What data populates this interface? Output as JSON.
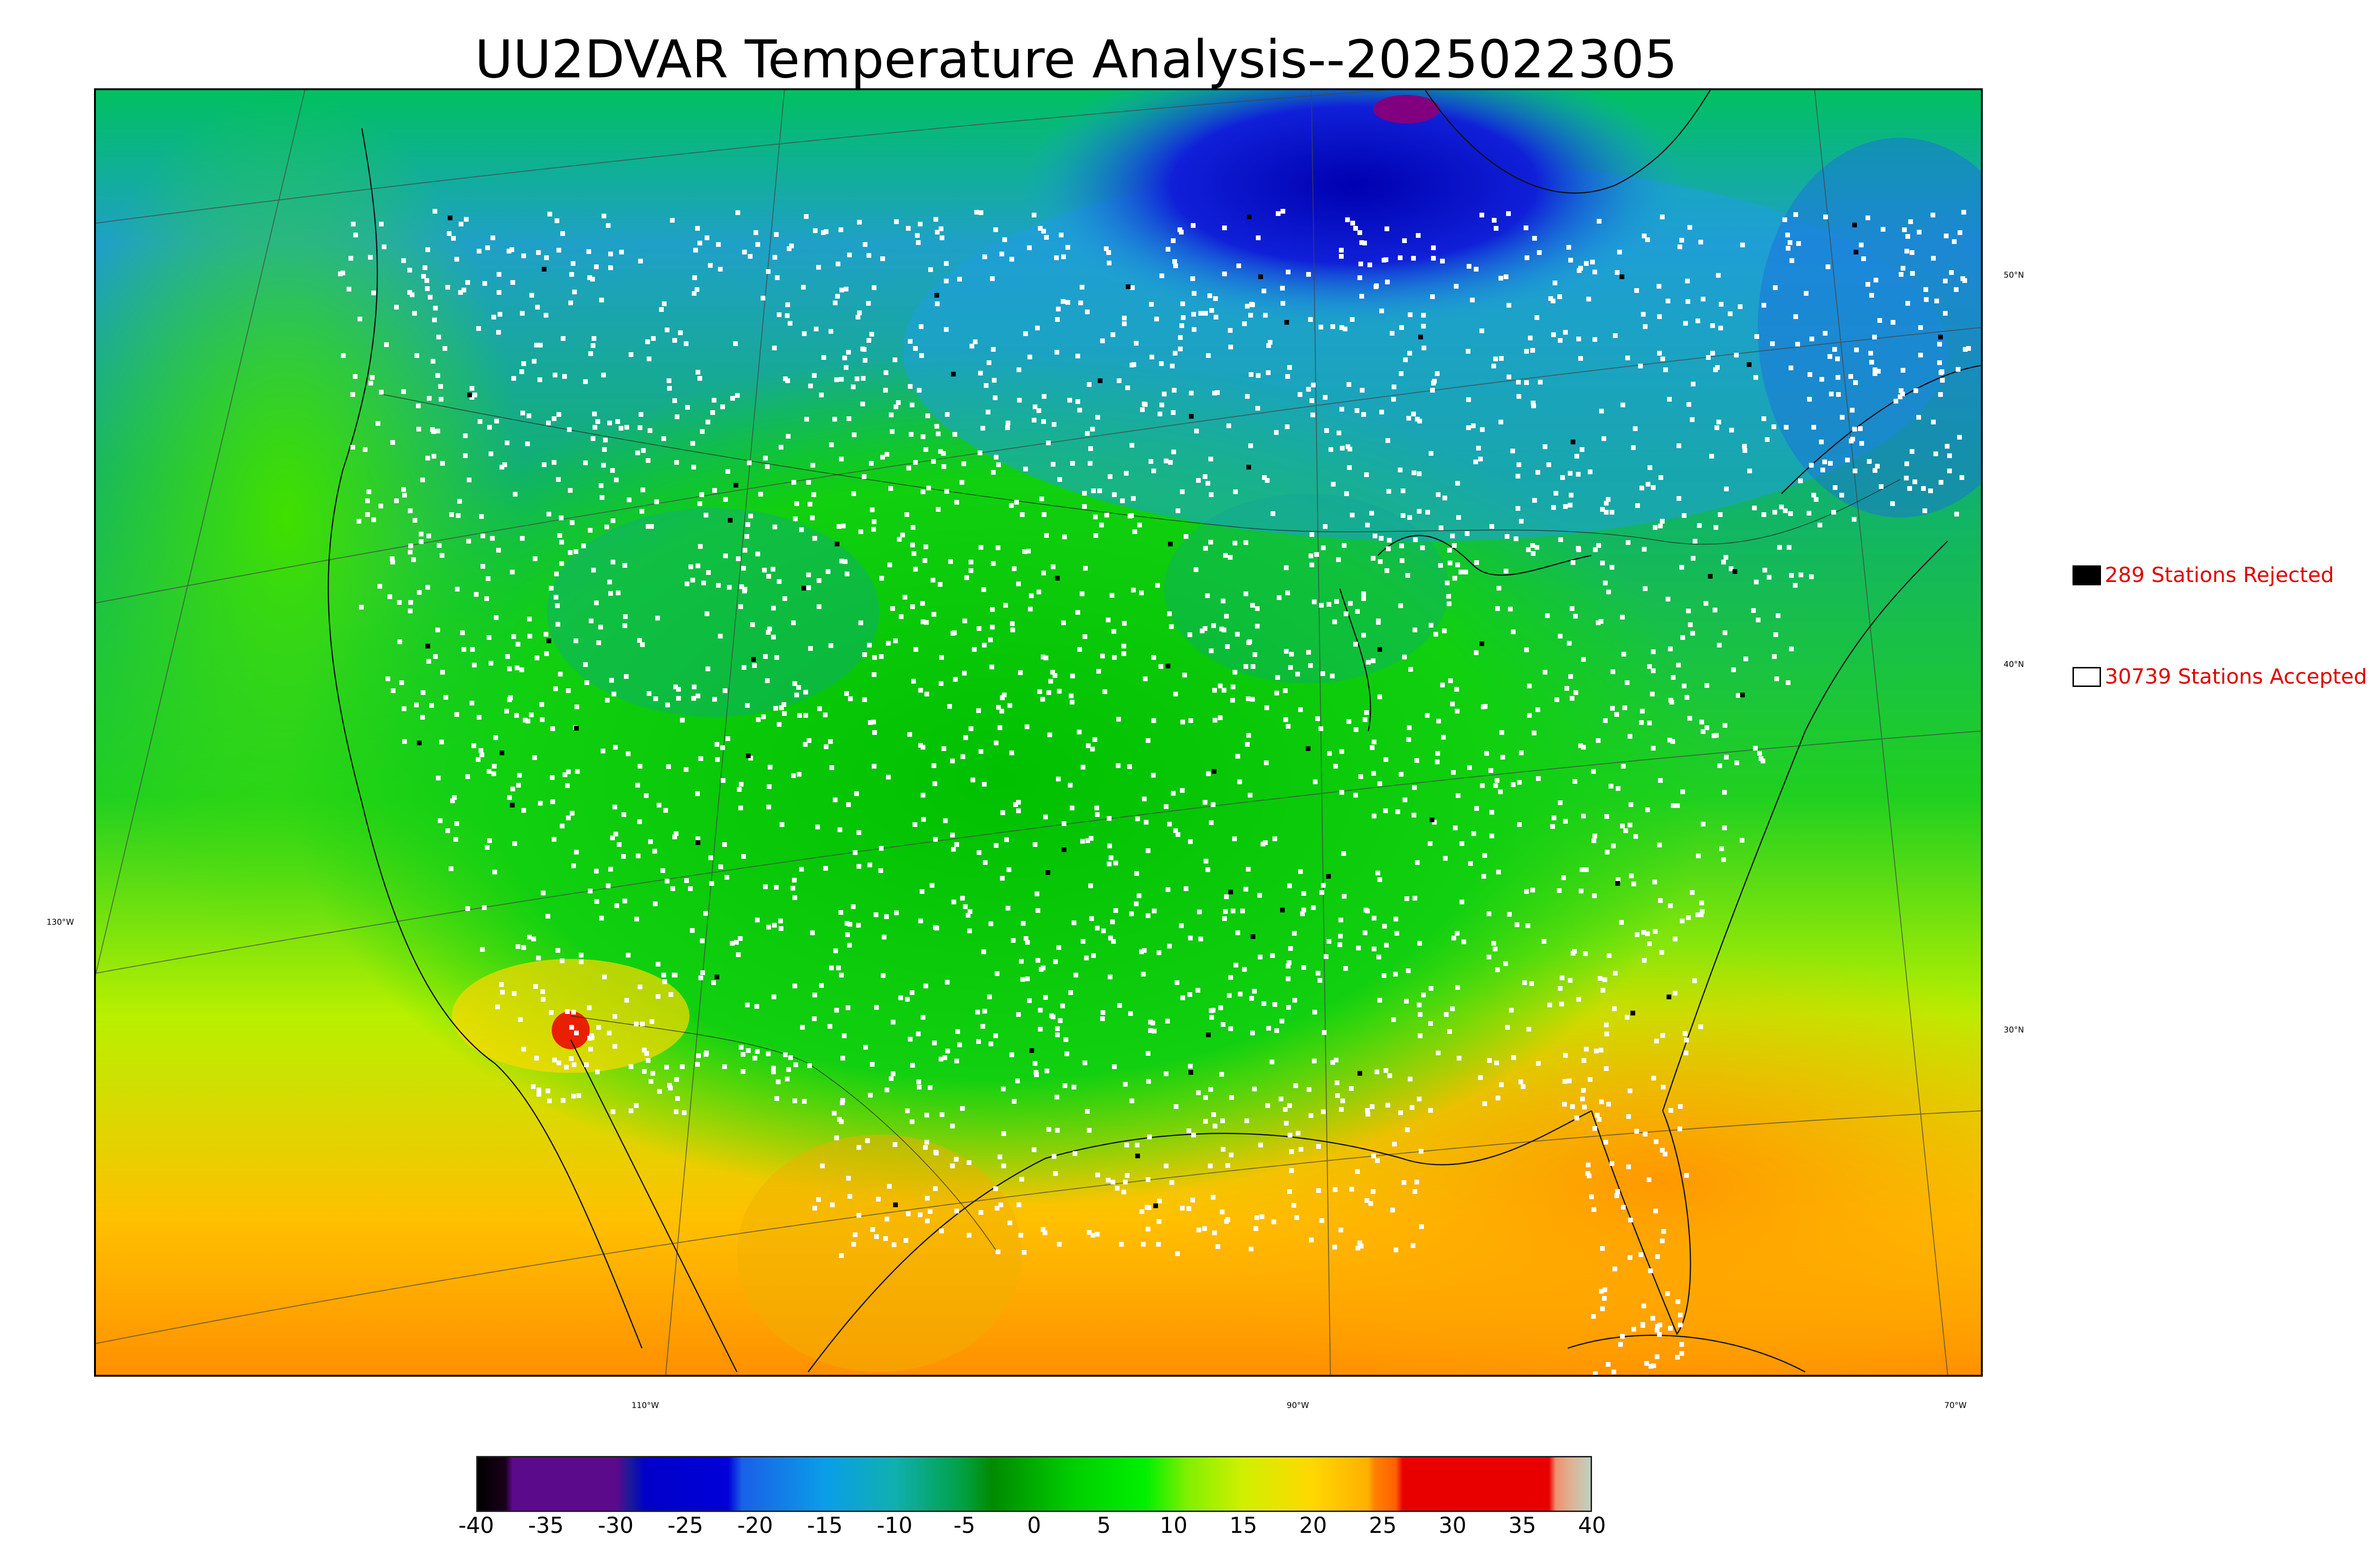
{
  "title": "UU2DVAR Temperature Analysis--2025022305",
  "map": {
    "lat_labels": [
      {
        "text": "50°N",
        "value": 50
      },
      {
        "text": "40°N",
        "value": 40
      },
      {
        "text": "30°N",
        "value": 30
      }
    ],
    "lon_labels": [
      {
        "text": "130°W",
        "value": -130
      },
      {
        "text": "110°W",
        "value": -110
      },
      {
        "text": "90°W",
        "value": -90
      },
      {
        "text": "70°W",
        "value": -70
      }
    ],
    "colors": {
      "ocean_north": "#1f9fe0",
      "land_mid": "#00c800",
      "land_dark": "#009a10",
      "ocean_south": "#ffa000",
      "ocean_west": "#b8f000",
      "cold_core": "#0000c8",
      "station_accepted": "#ffffff",
      "station_rejected": "#000000"
    }
  },
  "legend": {
    "rejected": {
      "label": "289 Stations Rejected",
      "swatch": "#000000"
    },
    "accepted": {
      "label": "30739 Stations Accepted",
      "swatch": "#ffffff"
    }
  },
  "colorbar": {
    "min": -40,
    "max": 40,
    "ticks": [
      "-40",
      "-35",
      "-30",
      "-25",
      "-20",
      "-15",
      "-10",
      "-5",
      "0",
      "5",
      "10",
      "15",
      "20",
      "25",
      "30",
      "35",
      "40"
    ],
    "stops": [
      {
        "v": -40,
        "c": "#000000"
      },
      {
        "v": -38,
        "c": "#1a001a"
      },
      {
        "v": -37.5,
        "c": "#5a0a8a"
      },
      {
        "v": -30,
        "c": "#5a0a8a"
      },
      {
        "v": -29,
        "c": "#1a1a9a"
      },
      {
        "v": -28,
        "c": "#0000c8"
      },
      {
        "v": -22,
        "c": "#0000d8"
      },
      {
        "v": -21,
        "c": "#1a60e8"
      },
      {
        "v": -15,
        "c": "#0a9ee8"
      },
      {
        "v": -10,
        "c": "#10b0b0"
      },
      {
        "v": -5,
        "c": "#00a040"
      },
      {
        "v": -3,
        "c": "#008a00"
      },
      {
        "v": 3,
        "c": "#00d000"
      },
      {
        "v": 8,
        "c": "#00f000"
      },
      {
        "v": 11,
        "c": "#80f000"
      },
      {
        "v": 15,
        "c": "#d0f000"
      },
      {
        "v": 20,
        "c": "#ffd800"
      },
      {
        "v": 24,
        "c": "#ffb000"
      },
      {
        "v": 24.5,
        "c": "#ff8000"
      },
      {
        "v": 26,
        "c": "#ff6000"
      },
      {
        "v": 26.5,
        "c": "#e80000"
      },
      {
        "v": 37,
        "c": "#e80000"
      },
      {
        "v": 37.5,
        "c": "#f09070"
      },
      {
        "v": 38.5,
        "c": "#e0b090"
      },
      {
        "v": 40,
        "c": "#c0d0c0"
      }
    ]
  }
}
